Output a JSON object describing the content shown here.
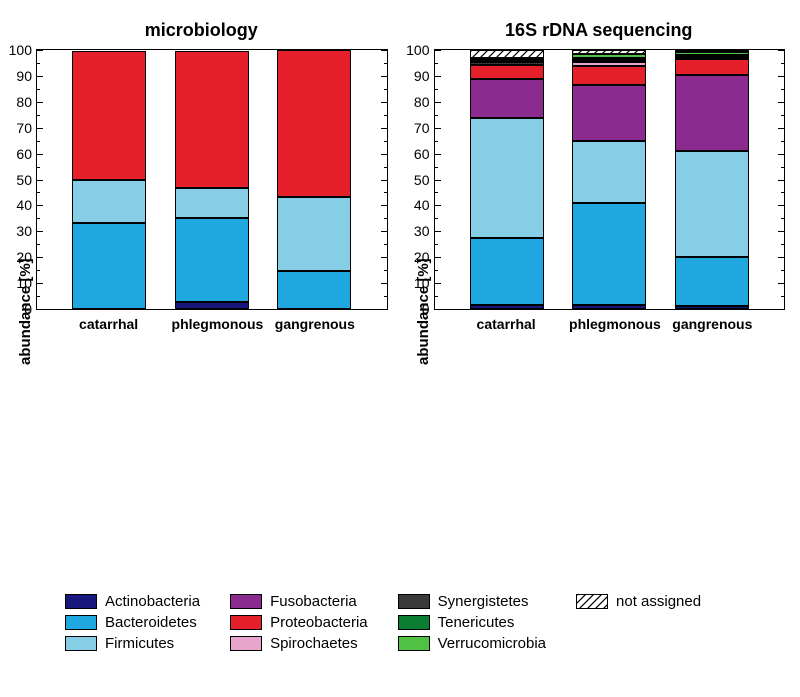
{
  "taxa": {
    "Actinobacteria": "#18177b",
    "Bacteroidetes": "#1fa8df",
    "Firmicutes": "#86cde6",
    "Fusobacteria": "#8c2b8f",
    "Proteobacteria": "#e6202a",
    "Spirochaetes": "#e9a6cd",
    "Synergistetes": "#3a3a3a",
    "Tenericutes": "#0a7d30",
    "Verrucomicrobia": "#4fc245",
    "not assigned": "hatched"
  },
  "ylabel": "abundance [%]",
  "ylim": [
    0,
    100
  ],
  "ytick_step": 10,
  "minor_tick_step": 5,
  "categories": [
    "catarrhal",
    "phlegmonous",
    "gangrenous"
  ],
  "panels": [
    {
      "title": "microbiology",
      "stacks": {
        "catarrhal": {
          "Actinobacteria": 0.0,
          "Bacteroidetes": 33.3,
          "Firmicutes": 16.7,
          "Fusobacteria": 0.0,
          "Proteobacteria": 49.7,
          "Spirochaetes": 0.0,
          "Synergistetes": 0.0,
          "Tenericutes": 0.0,
          "Verrucomicrobia": 0.0,
          "not assigned": 0.0
        },
        "phlegmonous": {
          "Actinobacteria": 2.8,
          "Bacteroidetes": 32.2,
          "Firmicutes": 11.8,
          "Fusobacteria": 0.0,
          "Proteobacteria": 53.0,
          "Spirochaetes": 0.0,
          "Synergistetes": 0.0,
          "Tenericutes": 0.0,
          "Verrucomicrobia": 0.0,
          "not assigned": 0.0
        },
        "gangrenous": {
          "Actinobacteria": 0.0,
          "Bacteroidetes": 14.6,
          "Firmicutes": 28.6,
          "Fusobacteria": 0.0,
          "Proteobacteria": 56.8,
          "Spirochaetes": 0.0,
          "Synergistetes": 0.0,
          "Tenericutes": 0.0,
          "Verrucomicrobia": 0.0,
          "not assigned": 0.0
        }
      }
    },
    {
      "title": "16S rDNA sequencing",
      "stacks": {
        "catarrhal": {
          "Actinobacteria": 1.7,
          "Bacteroidetes": 26.0,
          "Firmicutes": 46.3,
          "Fusobacteria": 15.3,
          "Proteobacteria": 5.5,
          "Spirochaetes": 0.0,
          "Synergistetes": 1.0,
          "Tenericutes": 1.0,
          "Verrucomicrobia": 0.2,
          "not assigned": 3.0
        },
        "phlegmonous": {
          "Actinobacteria": 1.5,
          "Bacteroidetes": 39.5,
          "Firmicutes": 24.2,
          "Fusobacteria": 21.8,
          "Proteobacteria": 7.5,
          "Spirochaetes": 1.3,
          "Synergistetes": 0.5,
          "Tenericutes": 0.5,
          "Verrucomicrobia": 1.7,
          "not assigned": 1.5
        },
        "gangrenous": {
          "Actinobacteria": 1.2,
          "Bacteroidetes": 19.0,
          "Firmicutes": 41.0,
          "Fusobacteria": 29.6,
          "Proteobacteria": 6.5,
          "Spirochaetes": 0.0,
          "Synergistetes": 0.5,
          "Tenericutes": 0.7,
          "Verrucomicrobia": 1.0,
          "not assigned": 0.5
        }
      }
    }
  ],
  "legend_layout": [
    [
      "Actinobacteria",
      "Bacteroidetes",
      "Firmicutes"
    ],
    [
      "Fusobacteria",
      "Proteobacteria",
      "Spirochaetes"
    ],
    [
      "Synergistetes",
      "Tenericutes",
      "Verrucomicrobia"
    ],
    [
      "not assigned"
    ]
  ],
  "background": "#ffffff",
  "hatch_bg": "#ffffff",
  "hatch_fg": "#000000"
}
